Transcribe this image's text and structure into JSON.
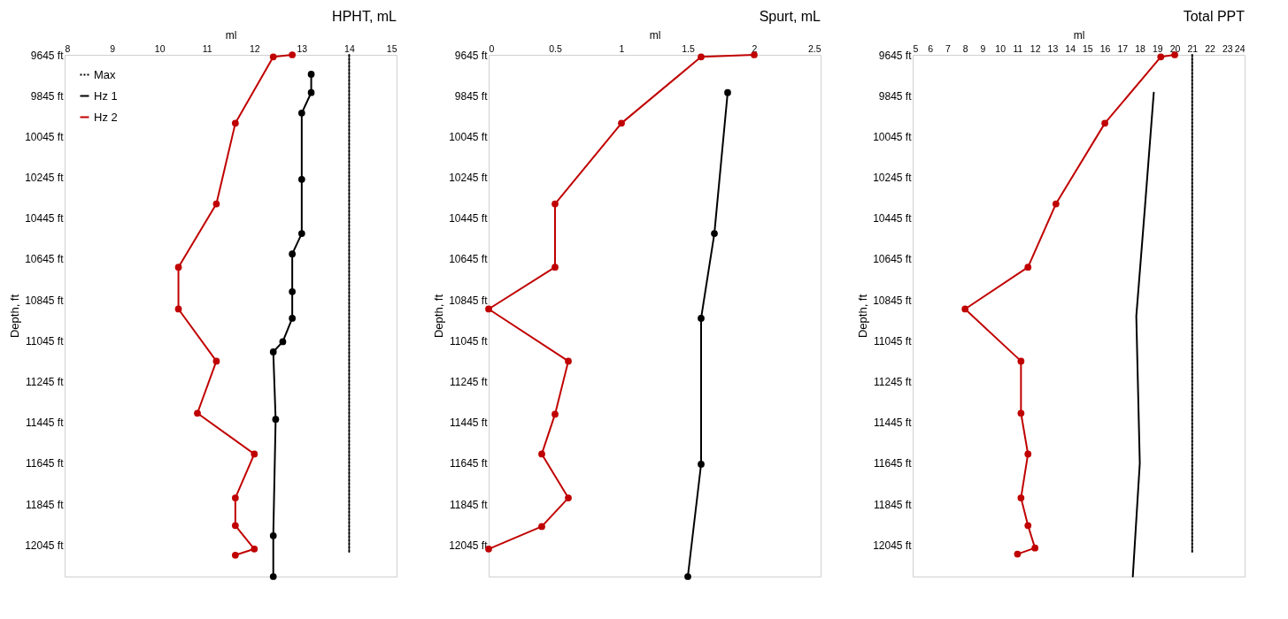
{
  "chart_data": [
    {
      "type": "line",
      "title": "HPHT, mL",
      "xlabel": "ml",
      "ylabel": "Depth, ft",
      "orientation": "horizontal",
      "legend": "top left",
      "xlim": [
        8,
        15
      ],
      "xticks": [
        8,
        9,
        10,
        11,
        12,
        13,
        14,
        15
      ],
      "ylim": [
        12200,
        9645
      ],
      "yticks": [
        {
          "value": 9645,
          "label": "9645 ft"
        },
        {
          "value": 9845,
          "label": "9845 ft"
        },
        {
          "value": 10045,
          "label": "10045 ft"
        },
        {
          "value": 10245,
          "label": "10245 ft"
        },
        {
          "value": 10445,
          "label": "10445 ft"
        },
        {
          "value": 10645,
          "label": "10645 ft"
        },
        {
          "value": 10845,
          "label": "10845 ft"
        },
        {
          "value": 11045,
          "label": "11045 ft"
        },
        {
          "value": 11245,
          "label": "11245 ft"
        },
        {
          "value": 11445,
          "label": "11445 ft"
        },
        {
          "value": 11645,
          "label": "11645 ft"
        },
        {
          "value": 11845,
          "label": "11845 ft"
        },
        {
          "value": 12045,
          "label": "12045 ft"
        }
      ],
      "series": [
        {
          "name": "Max",
          "color": "#000000",
          "line_style": "dotted",
          "marker": "none",
          "x": [
            9645,
            12085
          ],
          "values": [
            14,
            14
          ]
        },
        {
          "name": "Hz 1",
          "color": "#000000",
          "line_style": "solid",
          "marker": "circle",
          "x": [
            9740,
            9830,
            9930,
            10255,
            10520,
            10620,
            10805,
            10935,
            11050,
            11100,
            11430,
            12000,
            12200
          ],
          "values": [
            13.2,
            13.2,
            13.0,
            13.0,
            13.0,
            12.8,
            12.8,
            12.8,
            12.6,
            12.4,
            12.45,
            12.4,
            12.4
          ]
        },
        {
          "name": "Hz 2",
          "color": "#c00000",
          "line_style": "solid",
          "marker": "circle",
          "x": [
            9645,
            9655,
            9980,
            10375,
            10685,
            10890,
            11145,
            11400,
            11600,
            11815,
            11950,
            12065,
            12095
          ],
          "values": [
            12.8,
            12.4,
            11.6,
            11.2,
            10.4,
            10.4,
            11.2,
            10.8,
            12.0,
            11.6,
            11.6,
            12.0,
            11.6
          ]
        }
      ]
    },
    {
      "type": "line",
      "title": "Spurt, mL",
      "xlabel": "ml",
      "ylabel": "Depth, ft",
      "orientation": "horizontal",
      "legend": "top left",
      "xlim": [
        0,
        2.5
      ],
      "xticks": [
        0,
        0.5,
        1,
        1.5,
        2,
        2.5
      ],
      "ylim": [
        12200,
        9645
      ],
      "yticks": [
        {
          "value": 9645,
          "label": "9645 ft"
        },
        {
          "value": 9845,
          "label": "9845 ft"
        },
        {
          "value": 10045,
          "label": "10045 ft"
        },
        {
          "value": 10245,
          "label": "10245 ft"
        },
        {
          "value": 10445,
          "label": "10445 ft"
        },
        {
          "value": 10645,
          "label": "10645 ft"
        },
        {
          "value": 10845,
          "label": "10845 ft"
        },
        {
          "value": 11045,
          "label": "11045 ft"
        },
        {
          "value": 11245,
          "label": "11245 ft"
        },
        {
          "value": 11445,
          "label": "11445 ft"
        },
        {
          "value": 11645,
          "label": "11645 ft"
        },
        {
          "value": 11845,
          "label": "11845 ft"
        },
        {
          "value": 12045,
          "label": "12045 ft"
        }
      ],
      "series": [
        {
          "name": "Max",
          "color": "#000000",
          "line_style": "dotted",
          "marker": "none"
        },
        {
          "name": "Hz 1",
          "color": "#000000",
          "line_style": "solid",
          "marker": "circle",
          "x": [
            9830,
            10520,
            10935,
            11650,
            12200
          ],
          "values": [
            1.8,
            1.7,
            1.6,
            1.6,
            1.5
          ]
        },
        {
          "name": "Hz 2",
          "color": "#c00000",
          "line_style": "solid",
          "marker": "circle",
          "x": [
            9645,
            9655,
            9980,
            10375,
            10685,
            10890,
            11145,
            11405,
            11600,
            11815,
            11955,
            12065
          ],
          "values": [
            2.0,
            1.6,
            1.0,
            0.5,
            0.5,
            0,
            0.6,
            0.5,
            0.4,
            0.6,
            0.4,
            0
          ]
        }
      ]
    },
    {
      "type": "line",
      "title": "Total PPT",
      "xlabel": "ml",
      "ylabel": "Depth, ft",
      "orientation": "horizontal",
      "legend": "top left",
      "xlim": [
        5,
        24
      ],
      "xticks": [
        5,
        6,
        7,
        8,
        9,
        10,
        11,
        12,
        13,
        14,
        15,
        16,
        17,
        18,
        19,
        20,
        21,
        22,
        23,
        24
      ],
      "ylim": [
        12200,
        9645
      ],
      "yticks": [
        {
          "value": 9645,
          "label": "9645 ft"
        },
        {
          "value": 9845,
          "label": "9845 ft"
        },
        {
          "value": 10045,
          "label": "10045 ft"
        },
        {
          "value": 10245,
          "label": "10245 ft"
        },
        {
          "value": 10445,
          "label": "10445 ft"
        },
        {
          "value": 10645,
          "label": "10645 ft"
        },
        {
          "value": 10845,
          "label": "10845 ft"
        },
        {
          "value": 11045,
          "label": "11045 ft"
        },
        {
          "value": 11245,
          "label": "11245 ft"
        },
        {
          "value": 11445,
          "label": "11445 ft"
        },
        {
          "value": 11645,
          "label": "11645 ft"
        },
        {
          "value": 11845,
          "label": "11845 ft"
        },
        {
          "value": 12045,
          "label": "12045 ft"
        }
      ],
      "series": [
        {
          "name": "Max",
          "color": "#000000",
          "line_style": "dotted",
          "marker": "none",
          "x": [
            9645,
            12085
          ],
          "values": [
            21,
            21
          ]
        },
        {
          "name": "Hz 1",
          "color": "#000000",
          "line_style": "solid",
          "marker": "none",
          "x": [
            9830,
            10385,
            10925,
            11645,
            12200
          ],
          "values": [
            18.8,
            18.3,
            17.8,
            18.0,
            17.6
          ]
        },
        {
          "name": "Hz 2",
          "color": "#c00000",
          "line_style": "solid",
          "marker": "circle",
          "x": [
            9645,
            9655,
            9980,
            10375,
            10685,
            10890,
            11145,
            11400,
            11600,
            11815,
            11950,
            12060,
            12090
          ],
          "values": [
            20,
            19.2,
            16,
            13.2,
            11.6,
            8,
            11.2,
            11.2,
            11.6,
            11.2,
            11.6,
            12,
            11
          ]
        }
      ]
    }
  ]
}
